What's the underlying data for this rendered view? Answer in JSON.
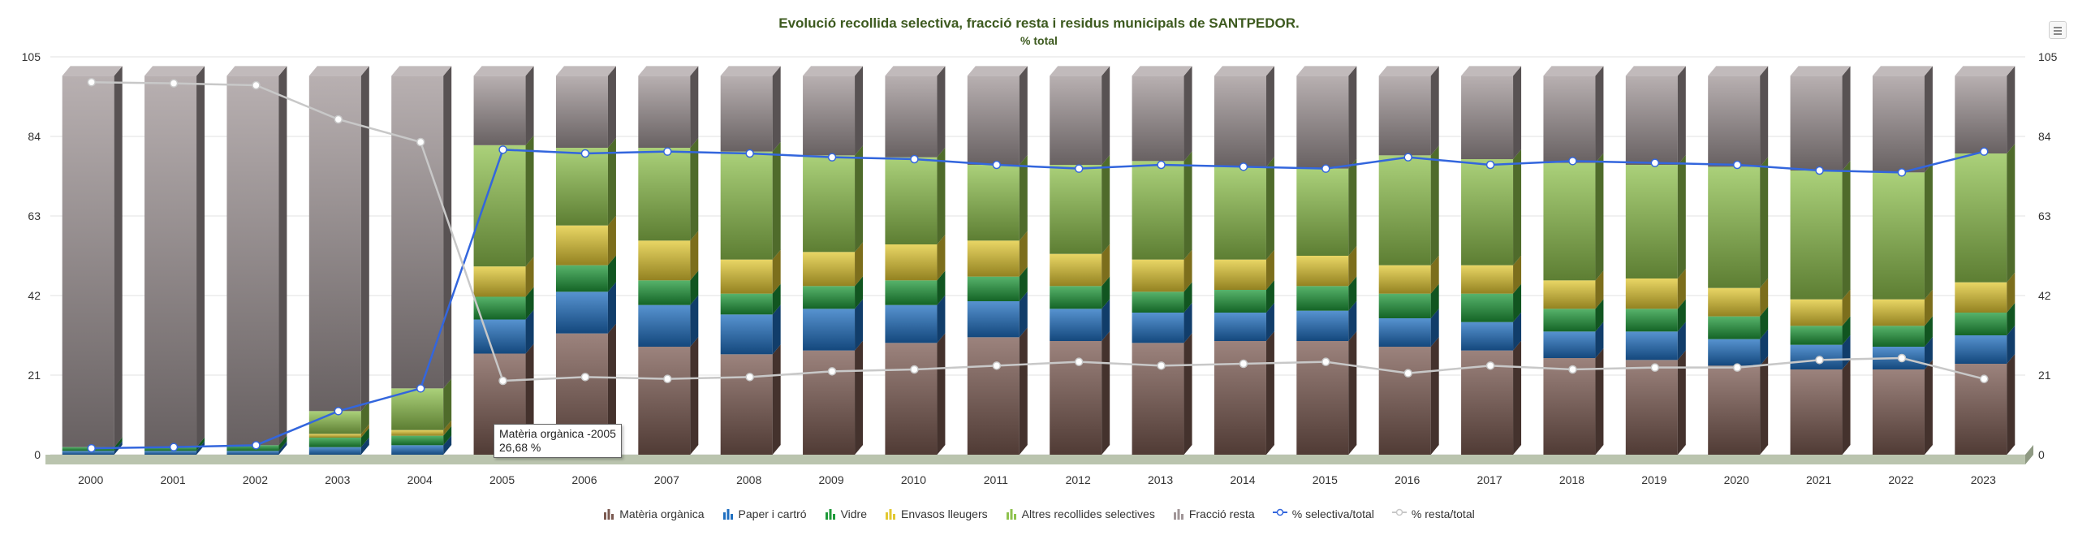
{
  "chart_data": {
    "type": "bar",
    "title": "Evolució recollida selectiva, fracció resta i residus municipals de SANTPEDOR.",
    "subtitle": "% total",
    "categories": [
      "2000",
      "2001",
      "2002",
      "2003",
      "2004",
      "2005",
      "2006",
      "2007",
      "2008",
      "2009",
      "2010",
      "2011",
      "2012",
      "2013",
      "2014",
      "2015",
      "2016",
      "2017",
      "2018",
      "2019",
      "2020",
      "2021",
      "2022",
      "2023"
    ],
    "ylim": [
      0,
      105
    ],
    "yticks": [
      0,
      21,
      42,
      63,
      84,
      105
    ],
    "stacked": true,
    "series": [
      {
        "name": "Matèria orgànica",
        "color": "#7b5a51",
        "values": [
          0,
          0,
          0,
          0,
          0,
          26.68,
          32.0,
          28.5,
          26.5,
          27.5,
          29.5,
          31.0,
          30.0,
          29.5,
          30.0,
          30.0,
          28.5,
          27.5,
          25.5,
          25.0,
          23.5,
          22.5,
          22.5,
          24.0
        ]
      },
      {
        "name": "Paper i cartró",
        "color": "#1f6fc0",
        "values": [
          1.0,
          1.0,
          1.0,
          2.0,
          2.5,
          9.0,
          11.0,
          11.0,
          10.5,
          11.0,
          10.0,
          9.5,
          8.5,
          8.0,
          7.5,
          8.0,
          7.5,
          7.5,
          7.0,
          7.5,
          7.0,
          6.5,
          6.0,
          7.5
        ]
      },
      {
        "name": "Vidre",
        "color": "#1f9a3a",
        "values": [
          1.0,
          1.0,
          1.5,
          2.5,
          2.5,
          6.0,
          7.0,
          6.5,
          5.5,
          6.0,
          6.5,
          6.5,
          6.0,
          5.5,
          6.0,
          6.5,
          6.5,
          7.5,
          6.0,
          6.0,
          6.0,
          5.0,
          5.5,
          6.0
        ]
      },
      {
        "name": "Envasos lleugers",
        "color": "#e2c832",
        "values": [
          0,
          0,
          0,
          1.0,
          1.5,
          8.0,
          10.5,
          10.5,
          9.0,
          9.0,
          9.5,
          9.5,
          8.5,
          8.5,
          8.0,
          8.0,
          7.5,
          7.5,
          7.5,
          8.0,
          7.5,
          7.0,
          7.0,
          8.0
        ]
      },
      {
        "name": "Altres recollides selectives",
        "color": "#8fc24e",
        "values": [
          0,
          0,
          0,
          6.0,
          11.0,
          32.0,
          20.5,
          24.5,
          28.5,
          25.5,
          23.0,
          20.0,
          23.5,
          26.0,
          24.5,
          23.0,
          29.0,
          28.0,
          31.0,
          30.0,
          32.0,
          34.0,
          33.5,
          34.0
        ]
      },
      {
        "name": "Fracció resta",
        "color": "#a09597",
        "values": [
          98.0,
          98.0,
          97.5,
          88.5,
          82.5,
          18.3,
          19.0,
          19.0,
          20.0,
          21.0,
          21.5,
          23.5,
          23.5,
          22.5,
          24.0,
          24.5,
          21.0,
          22.0,
          23.0,
          23.5,
          24.0,
          25.0,
          25.5,
          20.5
        ]
      }
    ],
    "lines": [
      {
        "name": "% selectiva/total",
        "color": "#3366dd",
        "values": [
          1.7,
          2.0,
          2.5,
          11.5,
          17.5,
          80.5,
          79.5,
          80.0,
          79.5,
          78.5,
          78.0,
          76.5,
          75.5,
          76.5,
          76.0,
          75.5,
          78.5,
          76.5,
          77.5,
          77.0,
          76.5,
          75.0,
          74.5,
          80.0
        ]
      },
      {
        "name": "% resta/total",
        "color": "#c8c8c8",
        "values": [
          98.3,
          98.0,
          97.5,
          88.5,
          82.5,
          19.5,
          20.5,
          20.0,
          20.5,
          22.0,
          22.5,
          23.5,
          24.5,
          23.5,
          24.0,
          24.5,
          21.5,
          23.5,
          22.5,
          23.0,
          23.0,
          25.0,
          25.5,
          20.0
        ]
      }
    ],
    "legend_position": "bottom",
    "grid": true,
    "tooltip": {
      "lines": [
        "Matèria orgànica -2005",
        "26,68 %"
      ]
    }
  }
}
